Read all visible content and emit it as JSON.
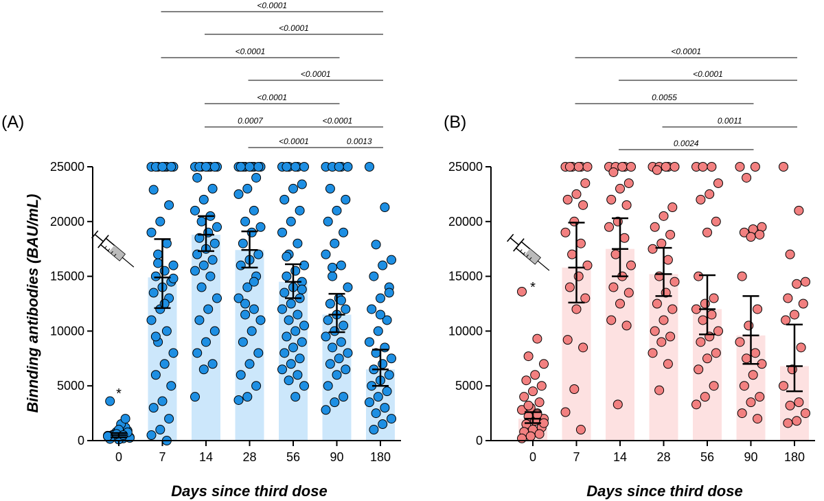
{
  "chart_data": [
    {
      "panel_label": "(A)",
      "type": "bar",
      "categories": [
        "0",
        "7",
        "14",
        "28",
        "56",
        "90",
        "180"
      ],
      "xlabel": "Days since third dose",
      "ylabel": "Binnding antibodies (BAU/mL)",
      "ylim": [
        0,
        25000
      ],
      "yticks": [
        "0",
        "5000",
        "10000",
        "15000",
        "20000",
        "25000"
      ],
      "bar_color": "#cce7fb",
      "point_color": "#1e8fe3",
      "star_category": "0",
      "star_label": "*",
      "bars": [
        {
          "category": "0",
          "value": 500,
          "ci": [
            300,
            700
          ]
        },
        {
          "category": "7",
          "value": 14900,
          "ci": [
            12100,
            18400
          ]
        },
        {
          "category": "14",
          "value": 18800,
          "ci": [
            17300,
            20500
          ]
        },
        {
          "category": "28",
          "value": 17400,
          "ci": [
            15800,
            19100
          ]
        },
        {
          "category": "56",
          "value": 14500,
          "ci": [
            13000,
            16100
          ]
        },
        {
          "category": "90",
          "value": 11500,
          "ci": [
            9900,
            13400
          ]
        },
        {
          "category": "180",
          "value": 6500,
          "ci": [
            5000,
            8300
          ]
        }
      ],
      "points": [
        [
          400,
          200,
          600,
          300,
          700,
          500,
          900,
          100,
          3600,
          1200,
          800,
          450,
          650,
          550,
          250,
          1500,
          350,
          750,
          1000,
          150,
          2000,
          600,
          400,
          500
        ],
        [
          25000,
          25000,
          25000,
          25000,
          25000,
          25000,
          25000,
          25000,
          22900,
          21500,
          20000,
          19000,
          18000,
          17000,
          16000,
          15500,
          15000,
          14500,
          14000,
          13500,
          13000,
          12000,
          11000,
          10000,
          9000,
          8000,
          7000,
          6000,
          5000,
          3600,
          3000,
          2000,
          1000,
          500,
          0,
          16200,
          14800,
          12500,
          9500
        ],
        [
          25000,
          25000,
          25000,
          25000,
          25000,
          25000,
          25000,
          25000,
          24000,
          23000,
          22000,
          21000,
          20500,
          20000,
          19500,
          19000,
          18500,
          18000,
          17500,
          17000,
          16500,
          16000,
          15500,
          15000,
          14000,
          13000,
          12000,
          11000,
          10000,
          9000,
          8000,
          7000,
          6500,
          4000
        ],
        [
          25000,
          25000,
          25000,
          25000,
          25000,
          25000,
          25000,
          25000,
          25000,
          24000,
          23000,
          22500,
          21000,
          20000,
          19500,
          19000,
          18000,
          17000,
          16500,
          16000,
          15000,
          14000,
          13000,
          12000,
          11500,
          11000,
          10000,
          9000,
          8000,
          7000,
          6000,
          5000,
          4000,
          3700,
          14500,
          12500
        ],
        [
          25000,
          25000,
          25000,
          25000,
          25000,
          25000,
          23400,
          23000,
          22000,
          21000,
          20000,
          19000,
          18000,
          17000,
          16000,
          15500,
          15000,
          14500,
          14000,
          13500,
          13000,
          12500,
          12000,
          11500,
          11000,
          10500,
          10000,
          9500,
          9000,
          8500,
          8000,
          7500,
          7000,
          6500,
          6000,
          5500,
          5000,
          4000,
          16800,
          13800
        ],
        [
          25000,
          25000,
          25000,
          25000,
          25000,
          23000,
          22000,
          21000,
          20000,
          19000,
          18000,
          17000,
          16000,
          15000,
          14000,
          13000,
          12500,
          12000,
          11500,
          11000,
          10500,
          10000,
          9500,
          9000,
          8500,
          8000,
          7500,
          7000,
          6500,
          6000,
          5000,
          4000,
          3500,
          2800,
          12800,
          15800
        ],
        [
          25000,
          21300,
          17900,
          16500,
          16000,
          15000,
          14000,
          13000,
          12000,
          11000,
          10000,
          9000,
          8500,
          8000,
          7500,
          7000,
          6500,
          6000,
          5500,
          5000,
          4500,
          4000,
          3500,
          3000,
          2500,
          2000,
          1500,
          1000,
          13500,
          11500
        ]
      ],
      "comparisons": [
        {
          "from": "7",
          "to": "180",
          "label": "<0.0001"
        },
        {
          "from": "14",
          "to": "180",
          "label": "<0.0001"
        },
        {
          "from": "7",
          "to": "90",
          "label": "<0.0001"
        },
        {
          "from": "28",
          "to": "180",
          "label": "<0.0001"
        },
        {
          "from": "14",
          "to": "90",
          "label": "<0.0001"
        },
        {
          "from": "14",
          "to": "56",
          "label": "0.0007"
        },
        {
          "from": "56",
          "to": "180",
          "label": "<0.0001"
        },
        {
          "from": "28",
          "to": "90",
          "label": "<0.0001"
        },
        {
          "from": "90",
          "to": "180",
          "label": "0.0013"
        }
      ]
    },
    {
      "panel_label": "(B)",
      "type": "bar",
      "categories": [
        "0",
        "7",
        "14",
        "28",
        "56",
        "90",
        "180"
      ],
      "xlabel": "Days since third dose",
      "ylabel": "",
      "ylim": [
        0,
        25000
      ],
      "yticks": [
        "0",
        "5000",
        "10000",
        "15000",
        "20000",
        "25000"
      ],
      "bar_color": "#fde1e1",
      "point_color": "#f28080",
      "star_category": "0",
      "star_label": "*",
      "bars": [
        {
          "category": "0",
          "value": 2000,
          "ci": [
            1600,
            2600
          ]
        },
        {
          "category": "7",
          "value": 15800,
          "ci": [
            12600,
            19900
          ]
        },
        {
          "category": "14",
          "value": 17500,
          "ci": [
            15000,
            20300
          ]
        },
        {
          "category": "28",
          "value": 15200,
          "ci": [
            13200,
            17600
          ]
        },
        {
          "category": "56",
          "value": 12000,
          "ci": [
            9700,
            15100
          ]
        },
        {
          "category": "90",
          "value": 9600,
          "ci": [
            7000,
            13200
          ]
        },
        {
          "category": "180",
          "value": 6800,
          "ci": [
            4500,
            10600
          ]
        }
      ],
      "points": [
        [
          13600,
          9300,
          7700,
          7000,
          6000,
          5500,
          5000,
          4500,
          4000,
          3500,
          3000,
          2800,
          2500,
          2200,
          2000,
          1800,
          1500,
          1200,
          1000,
          800,
          600,
          400,
          200,
          2400,
          3200,
          1600
        ],
        [
          25000,
          25000,
          25000,
          25000,
          25000,
          25000,
          23500,
          22500,
          22000,
          21500,
          20000,
          19000,
          18000,
          17000,
          16000,
          15000,
          14000,
          13000,
          12000,
          9200,
          8500,
          4700,
          2600,
          1000
        ],
        [
          25000,
          25000,
          25000,
          25000,
          25000,
          24500,
          23500,
          23000,
          22000,
          21500,
          20000,
          19500,
          18500,
          17000,
          16000,
          15000,
          14000,
          13500,
          12500,
          11000,
          10500,
          3300
        ],
        [
          25000,
          25000,
          25000,
          25000,
          25000,
          24700,
          21300,
          20500,
          19500,
          18800,
          18000,
          17500,
          16500,
          15000,
          14500,
          13500,
          12500,
          12000,
          11000,
          10000,
          9500,
          9000,
          8000,
          7000,
          4600
        ],
        [
          25000,
          25000,
          25000,
          23500,
          22500,
          22000,
          20000,
          19000,
          15000,
          13000,
          12500,
          12000,
          11500,
          11000,
          10000,
          9500,
          9000,
          8000,
          7500,
          6500,
          5000,
          4000,
          3300
        ],
        [
          25000,
          25000,
          24000,
          19500,
          19300,
          19000,
          18800,
          18600,
          15000,
          12000,
          10500,
          9000,
          8000,
          7500,
          7000,
          6000,
          5000,
          4000,
          3500,
          2500,
          2000
        ],
        [
          25000,
          21000,
          17000,
          14500,
          14300,
          13000,
          12500,
          11500,
          11000,
          8500,
          6500,
          5000,
          3500,
          3200,
          2500,
          1800,
          1600
        ]
      ],
      "comparisons": [
        {
          "from": "7",
          "to": "180",
          "label": "<0.0001"
        },
        {
          "from": "14",
          "to": "180",
          "label": "<0.0001"
        },
        {
          "from": "7",
          "to": "90",
          "label": "0.0055"
        },
        {
          "from": "28",
          "to": "180",
          "label": "0.0011"
        },
        {
          "from": "14",
          "to": "90",
          "label": "0.0024"
        }
      ]
    }
  ]
}
